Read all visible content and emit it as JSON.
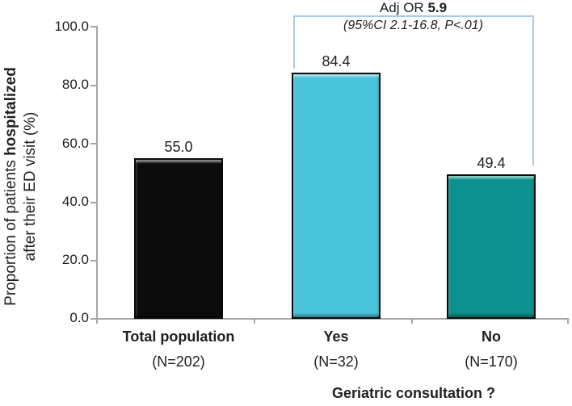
{
  "chart_data": {
    "type": "bar",
    "categories": [
      "Total population",
      "Yes",
      "No"
    ],
    "values": [
      55.0,
      84.4,
      49.4
    ],
    "value_labels": [
      "55.0",
      "84.4",
      "49.4"
    ],
    "n_labels": [
      "(N=202)",
      "(N=32)",
      "(N=170)"
    ],
    "bar_colors": [
      "#0c0c0c",
      "#4ac4da",
      "#0e918e"
    ],
    "xlabel": "Geriatric consultation ?",
    "ylabel": "Proportion of patients hospitalized after their ED visit (%)",
    "ylabel_line1_regular": "Proportion of patients ",
    "ylabel_line1_bold": "hospitalized",
    "ylabel_line2": "after their ED visit (%)",
    "ylim": [
      0,
      100
    ],
    "yticks": [
      "100.0",
      "80.0",
      "60.0",
      "40.0",
      "20.0",
      "0.0"
    ],
    "grid": false,
    "legend": false,
    "annotation": {
      "line1_prefix": "Adj OR ",
      "line1_value": "5.9",
      "line2": "(95%CI 2.1-16.8, P<.01)",
      "bracket_connects": [
        "Yes",
        "No"
      ]
    },
    "colors": {
      "bracket": "#aacbe8",
      "axis": "#a6a6a6",
      "text": "#1f1f1f"
    }
  }
}
